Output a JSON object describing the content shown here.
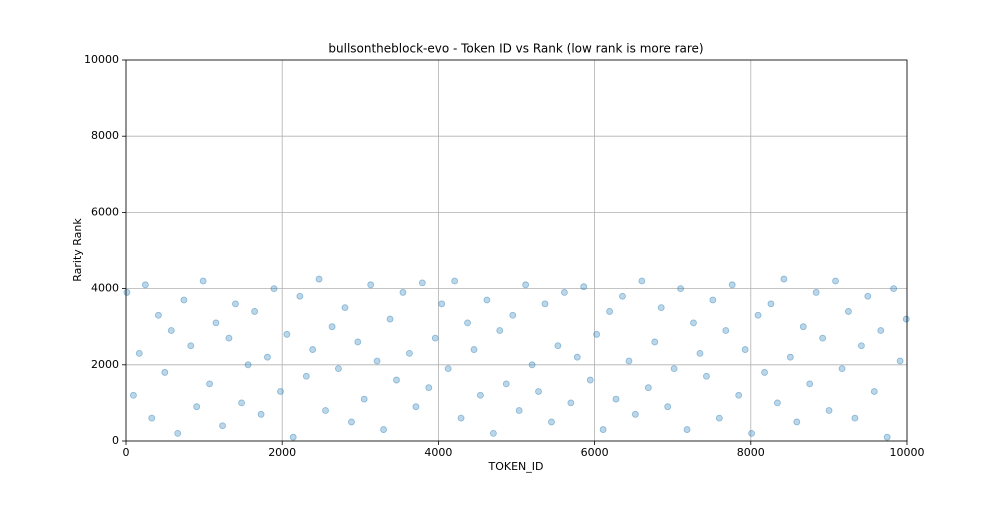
{
  "chart_data": {
    "type": "scatter",
    "title": "bullsontheblock-evo - Token ID vs Rank (low rank is more rare)",
    "x_label": "TOKEN_ID",
    "y_label": "Rarity Rank",
    "color": "#1f77b4",
    "grid": true,
    "xlim": [
      0,
      10000
    ],
    "ylim": [
      0,
      10000
    ],
    "xticks": [
      0,
      2000,
      4000,
      6000,
      8000,
      10000
    ],
    "yticks": [
      0,
      2000,
      4000,
      6000,
      8000,
      10000
    ],
    "x": [
      12,
      95,
      170,
      248,
      330,
      415,
      497,
      580,
      662,
      741,
      829,
      905,
      988,
      1070,
      1152,
      1236,
      1318,
      1402,
      1480,
      1563,
      1647,
      1730,
      1811,
      1895,
      1978,
      2060,
      2141,
      2226,
      2309,
      2390,
      2472,
      2555,
      2639,
      2720,
      2804,
      2887,
      2968,
      3050,
      3133,
      3215,
      3298,
      3381,
      3463,
      3546,
      3629,
      3712,
      3794,
      3877,
      3960,
      4042,
      4125,
      4208,
      4290,
      4373,
      4456,
      4538,
      4621,
      4704,
      4786,
      4869,
      4952,
      5034,
      5117,
      5200,
      5282,
      5365,
      5448,
      5530,
      5613,
      5696,
      5778,
      5861,
      5944,
      6026,
      6109,
      6192,
      6274,
      6357,
      6440,
      6522,
      6605,
      6688,
      6770,
      6853,
      6936,
      7018,
      7101,
      7184,
      7266,
      7349,
      7432,
      7514,
      7597,
      7680,
      7762,
      7845,
      7928,
      8010,
      8093,
      8176,
      8258,
      8341,
      8424,
      8506,
      8589,
      8672,
      8754,
      8837,
      8920,
      9002,
      9085,
      9168,
      9250,
      9333,
      9416,
      9498,
      9581,
      9664,
      9746,
      9829,
      9912,
      9990
    ],
    "y": [
      3900,
      1200,
      2300,
      4100,
      600,
      3300,
      1800,
      2900,
      200,
      3700,
      2500,
      900,
      4200,
      1500,
      3100,
      400,
      2700,
      3600,
      1000,
      2000,
      3400,
      700,
      2200,
      4000,
      1300,
      2800,
      100,
      3800,
      1700,
      2400,
      4250,
      800,
      3000,
      1900,
      3500,
      500,
      2600,
      1100,
      4100,
      2100,
      300,
      3200,
      1600,
      3900,
      2300,
      900,
      4150,
      1400,
      2700,
      3600,
      1900,
      4200,
      600,
      3100,
      2400,
      1200,
      3700,
      200,
      2900,
      1500,
      3300,
      800,
      4100,
      2000,
      1300,
      3600,
      500,
      2500,
      3900,
      1000,
      2200,
      4050,
      1600,
      2800,
      300,
      3400,
      1100,
      3800,
      2100,
      700,
      4200,
      1400,
      2600,
      3500,
      900,
      1900,
      4000,
      300,
      3100,
      2300,
      1700,
      3700,
      600,
      2900,
      4100,
      1200,
      2400,
      200,
      3300,
      1800,
      3600,
      1000,
      4250,
      2200,
      500,
      3000,
      1500,
      3900,
      2700,
      800,
      4200,
      1900,
      3400,
      600,
      2500,
      3800,
      1300,
      2900,
      100,
      4000,
      2100,
      3200
    ]
  }
}
